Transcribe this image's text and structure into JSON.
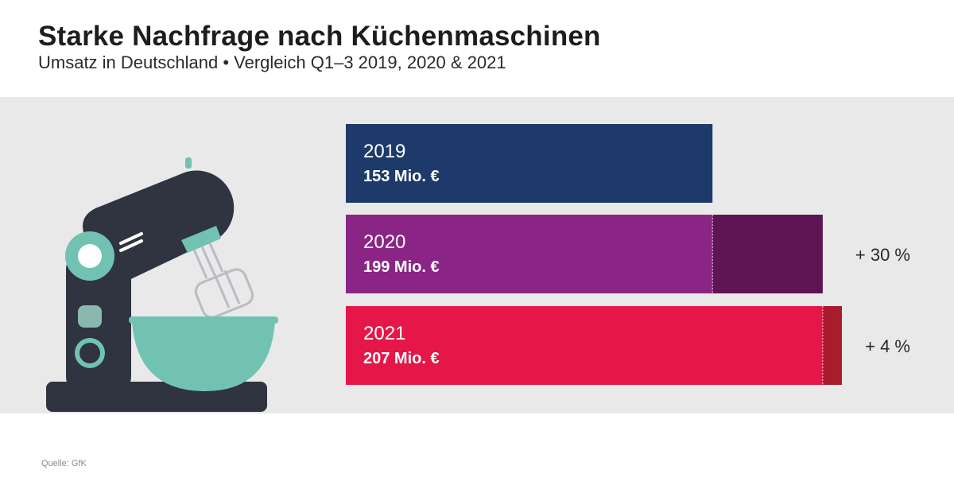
{
  "header": {
    "title": "Starke Nachfrage nach Küchenmaschinen",
    "subtitle": "Umsatz in Deutschland • Vergleich Q1–3 2019, 2020 & 2021"
  },
  "footer": {
    "source": "Quelle: GfK"
  },
  "colors": {
    "panel": "#e9e9e9",
    "y2019": "#1d3a6b",
    "y2020": "#8b2585",
    "y2020_increase": "#5e1553",
    "y2021": "#e51648",
    "y2021_increase": "#a81c2b",
    "mixer_body": "#2f3440",
    "mixer_accent": "#72c2b4"
  },
  "chart_data": {
    "type": "bar",
    "orientation": "horizontal",
    "unit": "Mio. €",
    "categories": [
      "2019",
      "2020",
      "2021"
    ],
    "values": [
      153,
      199,
      207
    ],
    "value_labels": [
      "153 Mio. €",
      "199 Mio. €",
      "207 Mio. €"
    ],
    "changes": [
      null,
      "+ 30 %",
      "+ 4 %"
    ],
    "xlim": [
      0,
      207
    ],
    "grid": false,
    "legend": "none",
    "illustration": "stand-mixer-icon"
  }
}
